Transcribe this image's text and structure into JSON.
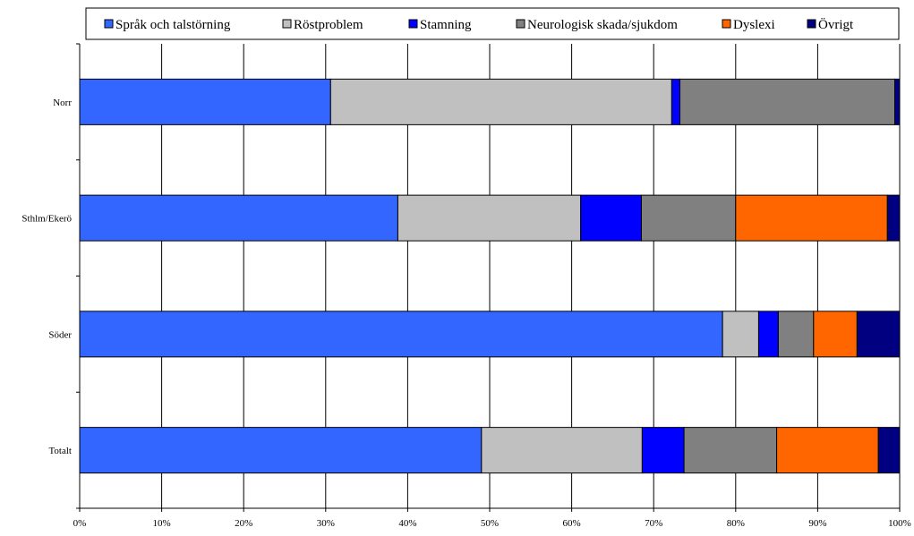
{
  "chart_data": {
    "type": "bar",
    "orientation": "horizontal",
    "stacked": "percent",
    "title": "",
    "xlabel": "",
    "ylabel": "",
    "xlim": [
      0,
      100
    ],
    "x_ticks": [
      "0%",
      "10%",
      "20%",
      "30%",
      "40%",
      "50%",
      "60%",
      "70%",
      "80%",
      "90%",
      "100%"
    ],
    "categories": [
      "Norr",
      "Sthlm/Ekerö",
      "Söder",
      "Totalt"
    ],
    "legend_position": "top",
    "grid": true,
    "series": [
      {
        "name": "Språk och talstörning",
        "color": "#3366ff",
        "values": [
          30.6,
          38.8,
          78.4,
          49.0
        ]
      },
      {
        "name": "Röstproblem",
        "color": "#c0c0c0",
        "values": [
          41.6,
          22.3,
          4.4,
          19.6
        ]
      },
      {
        "name": "Stamning",
        "color": "#0000ff",
        "values": [
          1.0,
          7.4,
          2.4,
          5.1
        ]
      },
      {
        "name": "Neurologisk skada/sjukdom",
        "color": "#808080",
        "values": [
          26.2,
          11.5,
          4.3,
          11.3
        ]
      },
      {
        "name": "Dyslexi",
        "color": "#ff6600",
        "values": [
          0.0,
          18.5,
          5.3,
          12.4
        ]
      },
      {
        "name": "Övrigt",
        "color": "#000080",
        "values": [
          0.6,
          1.5,
          5.2,
          2.6
        ]
      }
    ]
  }
}
